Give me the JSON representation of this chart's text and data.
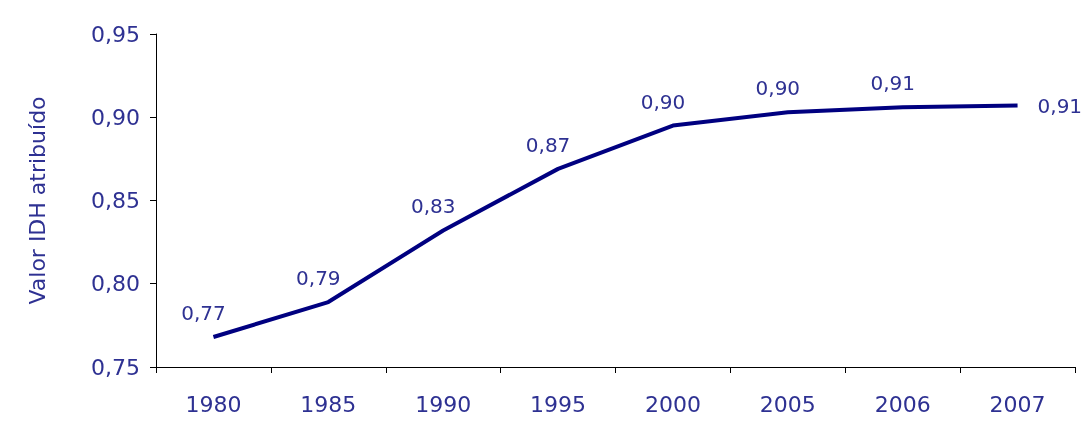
{
  "chart_data": {
    "type": "line",
    "ylabel": "Valor IDH atribuído",
    "categories": [
      "1980",
      "1985",
      "1990",
      "1995",
      "2000",
      "2005",
      "2006",
      "2007"
    ],
    "series": [
      {
        "color": "#000080",
        "values": [
          0.768,
          0.789,
          0.832,
          0.869,
          0.895,
          0.903,
          0.906,
          0.907
        ],
        "value_labels": [
          "0,77",
          "0,79",
          "0,83",
          "0,87",
          "0,90",
          "0,90",
          "0,91",
          "0,91"
        ]
      }
    ],
    "ylim": [
      0.75,
      0.95
    ],
    "yticks": [
      {
        "value": 0.75,
        "label": "0,75"
      },
      {
        "value": 0.8,
        "label": "0,80"
      },
      {
        "value": 0.85,
        "label": "0,85"
      },
      {
        "value": 0.9,
        "label": "0,90"
      },
      {
        "value": 0.95,
        "label": "0,95"
      }
    ],
    "grid": false,
    "marker": "none",
    "line_style": "solid"
  }
}
